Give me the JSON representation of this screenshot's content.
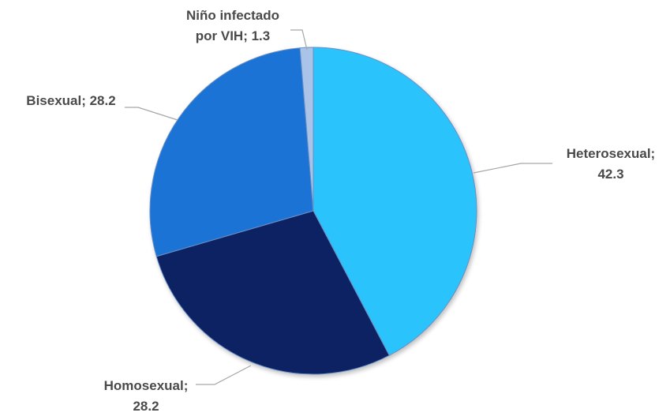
{
  "chart_data": {
    "type": "pie",
    "categories": [
      "Heterosexual",
      "Homosexual",
      "Bisexual",
      "Niño infectado por VIH"
    ],
    "values": [
      42.3,
      28.2,
      28.2,
      1.3
    ],
    "colors": [
      "#29c3fb",
      "#0c2462",
      "#1a73d6",
      "#a9c4e8"
    ],
    "data_labels": [
      [
        "Heterosexual;",
        "42.3"
      ],
      [
        "Homosexual;",
        "28.2"
      ],
      [
        "Bisexual; 28.2"
      ],
      [
        "Niño infectado",
        "por VIH; 1.3"
      ]
    ],
    "start_angle_deg": 0,
    "direction": "clockwise",
    "legend": "none"
  }
}
